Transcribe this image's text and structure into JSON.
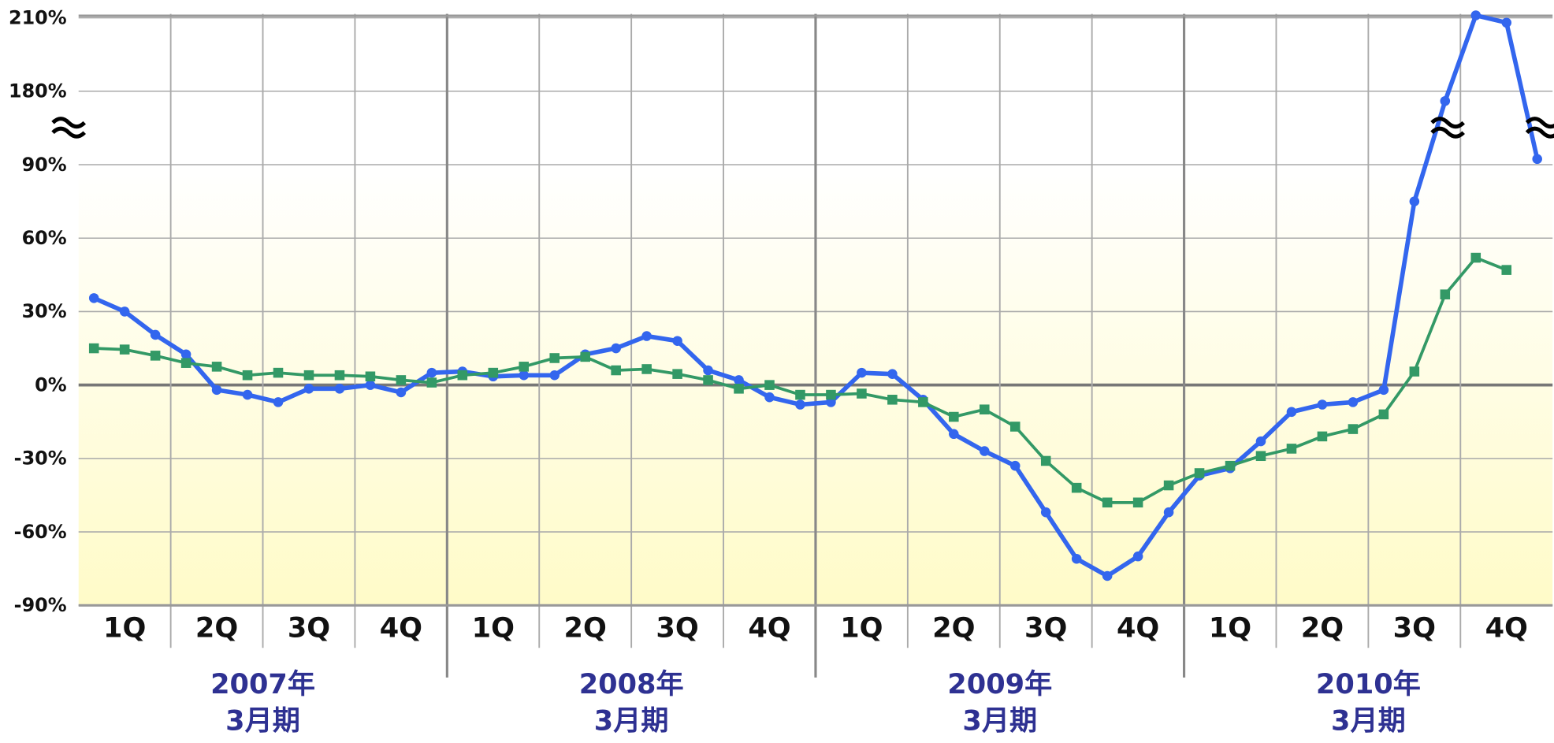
{
  "chart_data": {
    "type": "line",
    "quarters": [
      "1Q",
      "2Q",
      "3Q",
      "4Q",
      "1Q",
      "2Q",
      "3Q",
      "4Q",
      "1Q",
      "2Q",
      "3Q",
      "4Q",
      "1Q",
      "2Q",
      "3Q",
      "4Q"
    ],
    "years": [
      [
        "2007年",
        "3月期"
      ],
      [
        "2008年",
        "3月期"
      ],
      [
        "2009年",
        "3月期"
      ],
      [
        "2010年",
        "3月期"
      ]
    ],
    "series": [
      {
        "color": "#3366ee",
        "marker": "circle",
        "values": [
          35.5,
          30,
          20.5,
          12.5,
          -2,
          -4,
          -7,
          -1.5,
          -1.5,
          0,
          -3,
          5,
          5.5,
          3.5,
          4,
          4,
          12.5,
          15,
          20,
          18,
          6,
          2,
          -5,
          -8,
          -7,
          5,
          4.5,
          -6,
          -20,
          -27,
          -33,
          -52,
          -71,
          -78,
          -70,
          -52,
          -37,
          -34,
          -23,
          -11,
          -8,
          -7,
          -2,
          75,
          168,
          211,
          208,
          97
        ]
      },
      {
        "color": "#339966",
        "marker": "square",
        "values": [
          15,
          14.5,
          12,
          9,
          7.5,
          4,
          5,
          4,
          4,
          3.5,
          2,
          1,
          4,
          5,
          7.5,
          11,
          11.5,
          6,
          6.5,
          4.5,
          2,
          -1.5,
          0,
          -4,
          -4,
          -3.5,
          -6,
          -7,
          -13,
          -10,
          -17,
          -31,
          -42,
          -48,
          -48,
          -41,
          -36,
          -33,
          -29,
          -26,
          -21,
          -18,
          -12,
          5.5,
          37,
          52,
          47,
          null
        ]
      }
    ],
    "ylim": [
      -90,
      210
    ],
    "yticks": [
      {
        "value": -90,
        "label": "-90%"
      },
      {
        "value": -60,
        "label": "-60%"
      },
      {
        "value": -30,
        "label": "-30%"
      },
      {
        "value": 0,
        "label": "0%"
      },
      {
        "value": 30,
        "label": "30%"
      },
      {
        "value": 60,
        "label": "60%"
      },
      {
        "value": 90,
        "label": "90%"
      },
      {
        "value": 180,
        "label": "180%"
      },
      {
        "value": 210,
        "label": "210%"
      }
    ],
    "axis_break": [
      90,
      180
    ],
    "grid": true
  }
}
